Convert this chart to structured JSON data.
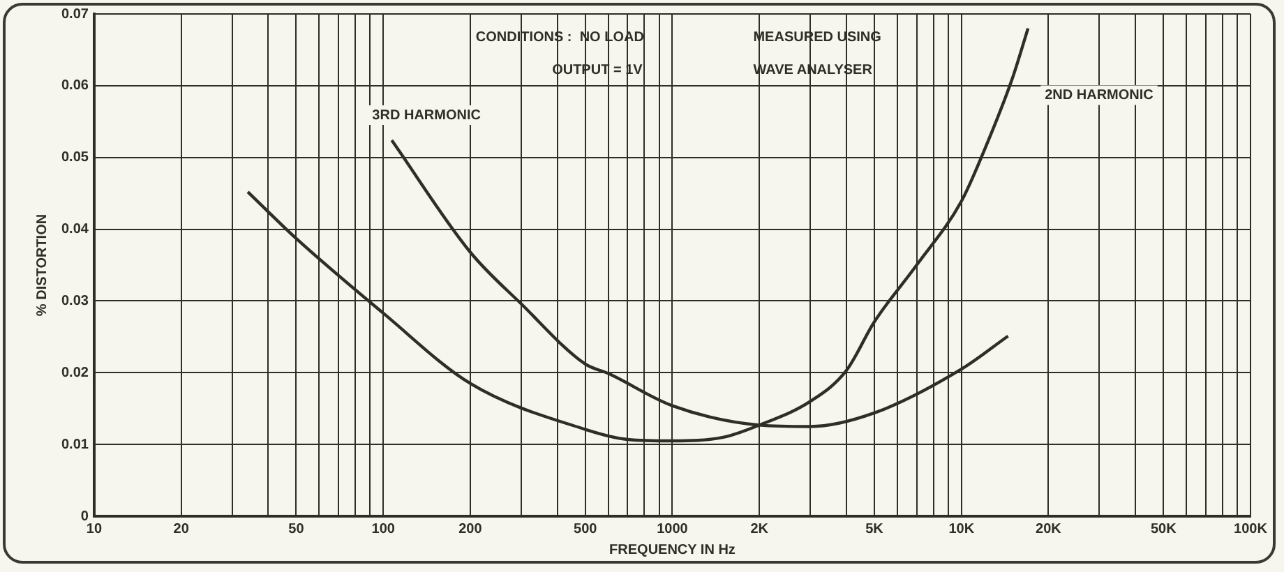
{
  "chart_data": {
    "type": "line",
    "xlabel": "FREQUENCY IN Hz",
    "ylabel": "% DISTORTION",
    "annotations": [
      "CONDITIONS :  NO LOAD",
      "OUTPUT = 1V",
      "MEASURED USING",
      "WAVE ANALYSER"
    ],
    "log": "x",
    "grid": true,
    "legend": false,
    "marker": "none",
    "line_style": "solid",
    "xlim": [
      10,
      100000
    ],
    "xticks": [
      10,
      20,
      {
        "value": 30,
        "label": null
      },
      {
        "value": 40,
        "label": null
      },
      50,
      {
        "value": 60,
        "label": null
      },
      {
        "value": 70,
        "label": null
      },
      {
        "value": 80,
        "label": null
      },
      {
        "value": 90,
        "label": null
      },
      100,
      200,
      {
        "value": 300,
        "label": null
      },
      {
        "value": 400,
        "label": null
      },
      500,
      {
        "value": 600,
        "label": null
      },
      {
        "value": 700,
        "label": null
      },
      {
        "value": 800,
        "label": null
      },
      {
        "value": 900,
        "label": null
      },
      1000,
      {
        "value": 2000,
        "label": "2K"
      },
      {
        "value": 3000,
        "label": null
      },
      {
        "value": 4000,
        "label": null
      },
      {
        "value": 5000,
        "label": "5K"
      },
      {
        "value": 6000,
        "label": null
      },
      {
        "value": 7000,
        "label": null
      },
      {
        "value": 8000,
        "label": null
      },
      {
        "value": 9000,
        "label": null
      },
      {
        "value": 10000,
        "label": "10K"
      },
      {
        "value": 20000,
        "label": "20K"
      },
      {
        "value": 30000,
        "label": null
      },
      {
        "value": 40000,
        "label": null
      },
      {
        "value": 50000,
        "label": "50K"
      },
      {
        "value": 60000,
        "label": null
      },
      {
        "value": 70000,
        "label": null
      },
      {
        "value": 80000,
        "label": null
      },
      {
        "value": 90000,
        "label": null
      },
      {
        "value": 100000,
        "label": "100K"
      }
    ],
    "ylim": [
      0,
      0.07
    ],
    "yticks": [
      0,
      0.01,
      0.02,
      0.03,
      0.04,
      0.05,
      0.06,
      0.07
    ],
    "series": [
      {
        "name": "3RD HARMONIC",
        "color": "#2e2e26",
        "x": [
          107,
          200,
          300,
          500,
          600,
          1000,
          2000,
          3000,
          5000,
          10000,
          14500
        ],
        "values": [
          0.0524,
          0.0368,
          0.0296,
          0.0212,
          0.0199,
          0.0154,
          0.0127,
          0.0125,
          0.0144,
          0.0205,
          0.0251
        ]
      },
      {
        "name": "2ND HARMONIC",
        "color": "#2e2e26",
        "x": [
          34,
          50,
          100,
          200,
          500,
          700,
          1000,
          1500,
          2000,
          3000,
          4000,
          5000,
          7000,
          10000,
          12000,
          15000,
          17000
        ],
        "values": [
          0.0452,
          0.0387,
          0.0283,
          0.0185,
          0.0121,
          0.0107,
          0.0105,
          0.011,
          0.0127,
          0.016,
          0.0203,
          0.0271,
          0.035,
          0.0439,
          0.051,
          0.061,
          0.068
        ]
      }
    ]
  }
}
